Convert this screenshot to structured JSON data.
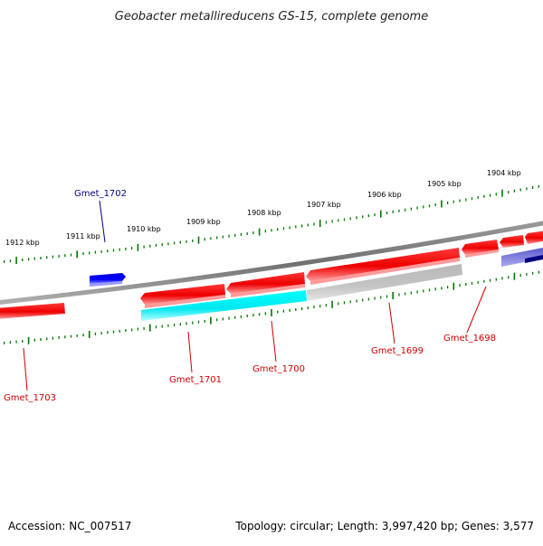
{
  "title": "Geobacter metallireducens GS-15, complete genome",
  "footer": {
    "accession": "Accession: NC_007517",
    "topology": "Topology: circular; Length: 3,997,420 bp; Genes: 3,577"
  },
  "colors": {
    "backbone": "#808080",
    "ticks": "#007700",
    "gene_forward": "#ff0000",
    "gene_reverse": "#ff0000",
    "gene_highlight": "#00ffff",
    "gene_blue": "#0000ff",
    "gene_navy": "#000080",
    "gene_lavender": "#7777dd",
    "gene_gray": "#bbbbbb",
    "label_red": "#cc0000",
    "label_blue": "#000080"
  },
  "kbp_labels": [
    "1904 kbp",
    "1905 kbp",
    "1906 kbp",
    "1907 kbp",
    "1908 kbp",
    "1909 kbp",
    "1910 kbp",
    "1911 kbp",
    "1912 kbp"
  ],
  "genes": [
    {
      "id": "Gmet_1698",
      "color": "red"
    },
    {
      "id": "Gmet_1699",
      "color": "red"
    },
    {
      "id": "Gmet_1700",
      "color": "red"
    },
    {
      "id": "Gmet_1701",
      "color": "red"
    },
    {
      "id": "Gmet_1702",
      "color": "blue"
    },
    {
      "id": "Gmet_1703",
      "color": "red"
    }
  ]
}
